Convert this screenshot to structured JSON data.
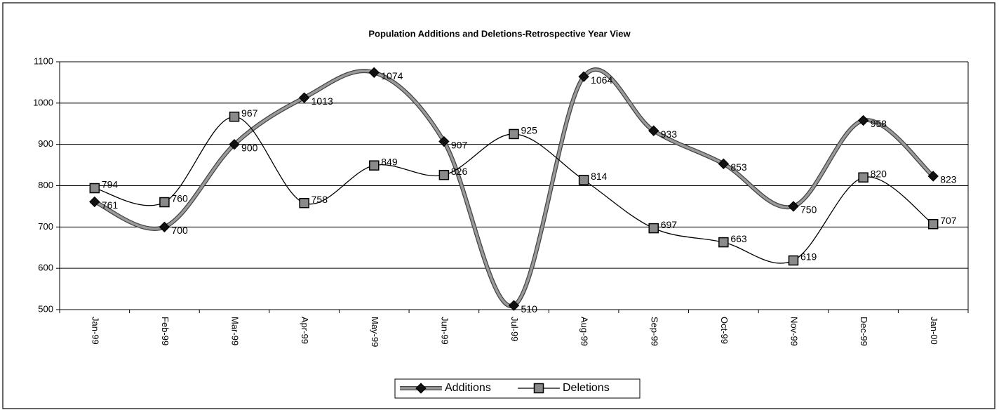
{
  "chart_data": {
    "type": "line",
    "title": "Population Additions and Deletions-Retrospective Year View",
    "categories": [
      "Jan-99",
      "Feb-99",
      "Mar-99",
      "Apr-99",
      "May-99",
      "Jun-99",
      "Jul-99",
      "Aug-99",
      "Sep-99",
      "Oct-99",
      "Nov-99",
      "Dec-99",
      "Jan-00"
    ],
    "series": [
      {
        "name": "Additions",
        "color": "#9a9a9a",
        "marker": "diamond",
        "values": [
          761,
          700,
          900,
          1013,
          1074,
          907,
          510,
          1064,
          933,
          853,
          750,
          958,
          823
        ]
      },
      {
        "name": "Deletions",
        "color": "#000000",
        "marker": "square",
        "values": [
          794,
          760,
          967,
          758,
          849,
          826,
          925,
          814,
          697,
          663,
          619,
          820,
          707
        ]
      }
    ],
    "ylim": [
      500,
      1100
    ],
    "yticks": [
      500,
      600,
      700,
      800,
      900,
      1000,
      1100
    ],
    "grid": true,
    "legend": "bottom"
  }
}
